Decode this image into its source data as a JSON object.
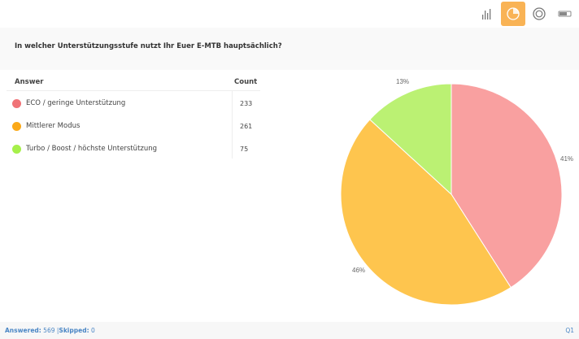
{
  "toolbar": {
    "buttons": [
      {
        "icon": "bar-chart-icon",
        "active": false
      },
      {
        "icon": "pie-chart-icon",
        "active": true
      },
      {
        "icon": "donut-chart-icon",
        "active": false
      },
      {
        "icon": "toggle-icon",
        "active": false
      }
    ],
    "accent_color": "#f9b355"
  },
  "question": {
    "text": "In welcher Unterstützungsstufe nutzt Ihr Euer E-MTB hauptsächlich?"
  },
  "table": {
    "headers": {
      "answer": "Answer",
      "count": "Count"
    },
    "rows": [
      {
        "label": "ECO / geringe Unterstützung",
        "count": "233",
        "color": "#f07377"
      },
      {
        "label": "Mittlerer Modus",
        "count": "261",
        "color": "#fba919"
      },
      {
        "label": "Turbo / Boost / höchste Unterstützung",
        "count": "75",
        "color": "#a6f04a"
      }
    ]
  },
  "footer": {
    "answered_label": "Answered:",
    "answered_value": "569",
    "separator": "|",
    "skipped_label": "Skipped:",
    "skipped_value": "0",
    "question_number": "Q1"
  },
  "chart_data": {
    "type": "pie",
    "title": "In welcher Unterstützungsstufe nutzt Ihr Euer E-MTB hauptsächlich?",
    "categories": [
      "ECO / geringe Unterstützung",
      "Mittlerer Modus",
      "Turbo / Boost / höchste Unterstützung"
    ],
    "values": [
      233,
      261,
      75
    ],
    "percent_labels": [
      "41%",
      "46%",
      "13%"
    ],
    "colors": [
      "#f9a0a0",
      "#fec54e",
      "#bbf173"
    ],
    "legend_position": "left-table"
  }
}
